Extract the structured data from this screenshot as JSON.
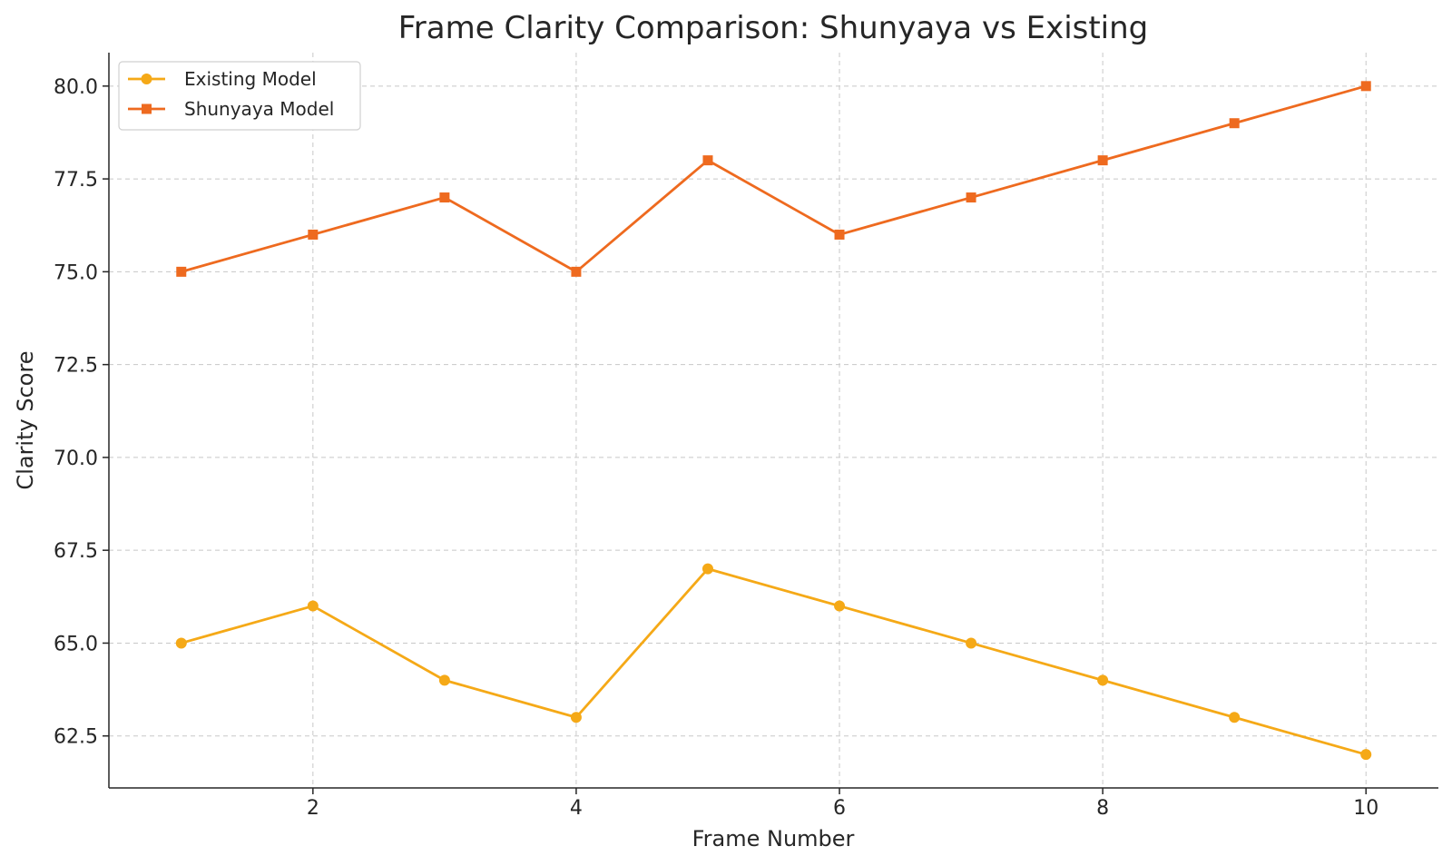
{
  "chart_data": {
    "type": "line",
    "title": "Frame Clarity Comparison: Shunyaya vs Existing",
    "xlabel": "Frame Number",
    "ylabel": "Clarity Score",
    "x": [
      1,
      2,
      3,
      4,
      5,
      6,
      7,
      8,
      9,
      10
    ],
    "xticks": [
      2,
      4,
      6,
      8,
      10
    ],
    "yticks": [
      "62.5",
      "65.0",
      "67.5",
      "70.0",
      "72.5",
      "75.0",
      "77.5",
      "80.0"
    ],
    "xlim": [
      0.45,
      10.55
    ],
    "ylim": [
      61.1,
      80.9
    ],
    "grid": true,
    "legend_position": "top-left",
    "series": [
      {
        "name": "Existing Model",
        "color": "#f5a917",
        "marker": "circle",
        "values": [
          65,
          66,
          64,
          63,
          67,
          66,
          65,
          64,
          63,
          62
        ]
      },
      {
        "name": "Shunyaya Model",
        "color": "#ee6a1f",
        "marker": "square",
        "values": [
          75,
          76,
          77,
          75,
          78,
          76,
          77,
          78,
          79,
          80
        ]
      }
    ]
  }
}
